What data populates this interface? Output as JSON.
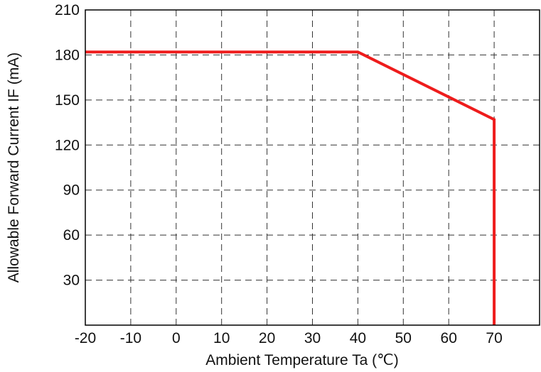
{
  "chart_data": {
    "type": "line",
    "title": "",
    "xlabel": "Ambient Temperature Ta (℃)",
    "ylabel": "Allowable Forward Current IF (mA)",
    "xlim": [
      -20,
      80
    ],
    "ylim": [
      0,
      210
    ],
    "xticks": [
      -20,
      -10,
      0,
      10,
      20,
      30,
      40,
      50,
      60,
      70
    ],
    "xtick_labels": [
      "-20",
      "-10",
      "0",
      "10",
      "20",
      "30",
      "40",
      "50",
      "60",
      "70"
    ],
    "yticks": [
      30,
      60,
      90,
      120,
      150,
      180,
      210
    ],
    "ytick_labels": [
      "30",
      "60",
      "90",
      "120",
      "150",
      "180",
      "210"
    ],
    "grid": true,
    "grid_style": "dashed",
    "series": [
      {
        "color": "#ee1c1c",
        "x": [
          -20,
          40,
          70,
          70
        ],
        "y": [
          182,
          182,
          137,
          0
        ]
      }
    ]
  }
}
